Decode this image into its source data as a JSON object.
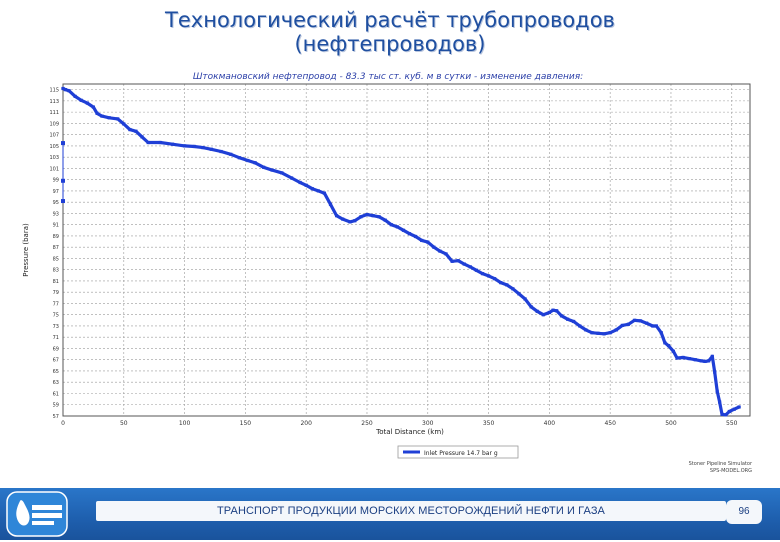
{
  "slide": {
    "title_line1": "Технологический расчёт трубопроводов",
    "title_line2": "(нефтепроводов)",
    "footer_text": "ТРАНСПОРТ ПРОДУКЦИИ МОРСКИХ МЕСТОРОЖДЕНИЙ НЕФТИ И ГАЗА",
    "page_number": "96"
  },
  "colors": {
    "series": "#1f3fd6",
    "title": "#1f4fa0",
    "footer_band": "#1e5fae",
    "grid": "#9a9a9a"
  },
  "icons": {
    "logo": "gazprom-logo-icon"
  },
  "chart_data": {
    "type": "line",
    "title": "Штокмановский нефтепровод - 83.3 тыс ст. куб. м в сутки - изменение давления:",
    "xlabel": "Total Distance (km)",
    "ylabel": "Pressure (bara)",
    "xlim": [
      0,
      565
    ],
    "ylim": [
      57,
      116
    ],
    "x_ticks": [
      0,
      50,
      100,
      150,
      200,
      250,
      300,
      350,
      400,
      450,
      500,
      550
    ],
    "x_tick_labels": [
      "0",
      "50",
      "100",
      "150",
      "200",
      "250",
      "300",
      "350",
      "400",
      "450",
      "500",
      "550"
    ],
    "y_ticks": [
      57,
      59,
      61,
      63,
      65,
      67,
      69,
      71,
      73,
      75,
      77,
      79,
      81,
      83,
      85,
      87,
      89,
      91,
      93,
      95,
      97,
      99,
      101,
      103,
      105,
      107,
      109,
      111,
      113,
      115
    ],
    "y_tick_labels": [
      "57",
      "59",
      "61",
      "63",
      "65",
      "67",
      "69",
      "71",
      "73",
      "75",
      "77",
      "79",
      "81",
      "83",
      "85",
      "87",
      "89",
      "91",
      "93",
      "95",
      "97",
      "99",
      "101",
      "103",
      "105",
      "107",
      "109",
      "111",
      "113",
      "115"
    ],
    "grid": true,
    "legend_position": "bottom-center",
    "series": [
      {
        "name": "Inlet Pressure 14.7 bar g",
        "x": [
          0,
          2,
          5,
          10,
          15,
          20,
          25,
          28,
          32,
          38,
          45,
          50,
          55,
          60,
          65,
          70,
          80,
          90,
          100,
          108,
          115,
          122,
          130,
          138,
          145,
          152,
          158,
          165,
          172,
          180,
          188,
          195,
          200,
          205,
          210,
          215,
          220,
          225,
          230,
          236,
          240,
          245,
          250,
          255,
          260,
          265,
          270,
          275,
          280,
          285,
          290,
          295,
          300,
          305,
          310,
          315,
          320,
          325,
          330,
          335,
          340,
          345,
          350,
          355,
          360,
          365,
          370,
          375,
          380,
          385,
          390,
          395,
          400,
          403,
          406,
          410,
          415,
          420,
          425,
          430,
          435,
          440,
          445,
          450,
          455,
          460,
          465,
          470,
          475,
          480,
          485,
          488,
          492,
          495,
          498,
          502,
          505,
          510,
          515,
          520,
          525,
          528,
          531,
          534,
          536,
          538,
          540,
          542,
          545,
          548,
          552,
          556
        ],
        "values": [
          115.2,
          115.0,
          114.8,
          113.8,
          113.1,
          112.6,
          111.9,
          110.8,
          110.3,
          110.0,
          109.8,
          108.9,
          107.9,
          107.6,
          106.6,
          105.6,
          105.6,
          105.3,
          105.0,
          104.9,
          104.7,
          104.4,
          104.0,
          103.5,
          102.9,
          102.4,
          102.0,
          101.2,
          100.7,
          100.2,
          99.3,
          98.5,
          98.0,
          97.4,
          97.0,
          96.6,
          94.6,
          92.6,
          92.0,
          91.5,
          91.7,
          92.4,
          92.8,
          92.6,
          92.4,
          91.8,
          91.0,
          90.6,
          90.0,
          89.4,
          88.9,
          88.2,
          87.9,
          87.0,
          86.3,
          85.8,
          84.5,
          84.6,
          84.0,
          83.5,
          82.9,
          82.3,
          81.9,
          81.4,
          80.7,
          80.3,
          79.6,
          78.7,
          77.8,
          76.4,
          75.6,
          75.0,
          75.4,
          75.8,
          75.7,
          74.8,
          74.2,
          73.8,
          73.0,
          72.3,
          71.8,
          71.7,
          71.6,
          71.8,
          72.3,
          73.1,
          73.3,
          74.0,
          73.9,
          73.5,
          73.0,
          73.0,
          71.8,
          70.0,
          69.5,
          68.5,
          67.3,
          67.4,
          67.2,
          67.0,
          66.8,
          66.7,
          66.8,
          67.6,
          64.8,
          61.4,
          59.5,
          57.3,
          57.2,
          57.8,
          58.2,
          58.6
        ]
      }
    ],
    "outliers": [
      {
        "x": 0,
        "y": 105.5
      },
      {
        "x": 0,
        "y": 95.2
      },
      {
        "x": 0,
        "y": 98.8
      }
    ],
    "notes_lines": [
      "Stoner Pipeline Simulator",
      "SPS-MODEL.ORG"
    ]
  }
}
